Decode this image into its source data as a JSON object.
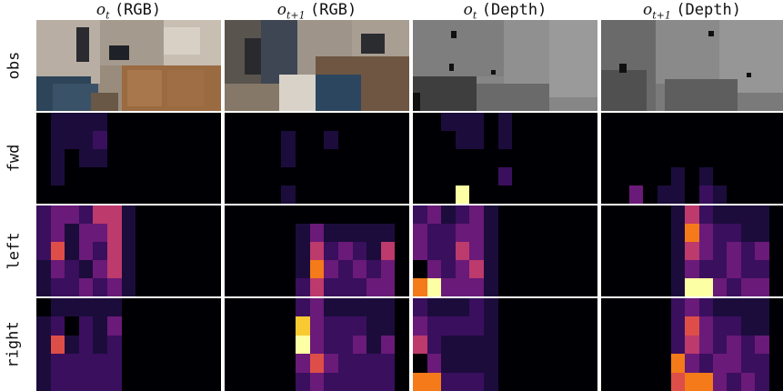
{
  "columns": [
    {
      "symbol": "o",
      "sub": "t",
      "suffix": "(RGB)"
    },
    {
      "symbol": "o",
      "sub": "t+1",
      "suffix": "(RGB)"
    },
    {
      "symbol": "o",
      "sub": "t",
      "suffix": "(Depth)"
    },
    {
      "symbol": "o",
      "sub": "t+1",
      "suffix": "(Depth)"
    }
  ],
  "rows": [
    "obs",
    "fwd",
    "left",
    "right"
  ],
  "colors": {
    "heat_low": "#000004",
    "heat_mid1": "#1c0c3c",
    "heat_mid2": "#6a1a78",
    "heat_mid3": "#bc3a6c",
    "heat_high1": "#f47a1a",
    "heat_high2": "#fcffa4"
  },
  "heatmaps": {
    "fwd": [
      [
        [
          1,
          2,
          2,
          2,
          2,
          1,
          1,
          1,
          1,
          1,
          1,
          1,
          1
        ],
        [
          1,
          2,
          2,
          2,
          3,
          1,
          1,
          1,
          1,
          1,
          1,
          1,
          1
        ],
        [
          1,
          2,
          1,
          2,
          2,
          1,
          1,
          1,
          1,
          1,
          1,
          1,
          1
        ],
        [
          1,
          2,
          1,
          1,
          1,
          1,
          1,
          1,
          1,
          1,
          1,
          1,
          1
        ],
        [
          1,
          1,
          1,
          1,
          1,
          1,
          1,
          1,
          1,
          1,
          1,
          1,
          1
        ]
      ],
      [
        [
          1,
          1,
          1,
          1,
          1,
          1,
          1,
          1,
          1,
          1,
          1,
          1,
          1
        ],
        [
          1,
          1,
          1,
          1,
          2,
          1,
          1,
          2,
          1,
          1,
          1,
          1,
          1
        ],
        [
          1,
          1,
          1,
          1,
          2,
          1,
          1,
          1,
          1,
          1,
          1,
          1,
          1
        ],
        [
          1,
          1,
          1,
          1,
          1,
          1,
          1,
          1,
          1,
          1,
          1,
          1,
          1
        ],
        [
          1,
          1,
          1,
          1,
          2,
          1,
          1,
          1,
          1,
          1,
          1,
          1,
          1
        ]
      ],
      [
        [
          1,
          1,
          2,
          2,
          2,
          1,
          2,
          1,
          1,
          1,
          1,
          1,
          1
        ],
        [
          1,
          1,
          1,
          2,
          2,
          1,
          2,
          1,
          1,
          1,
          1,
          1,
          1
        ],
        [
          1,
          1,
          1,
          1,
          1,
          1,
          1,
          1,
          1,
          1,
          1,
          1,
          1
        ],
        [
          1,
          1,
          1,
          1,
          1,
          1,
          3,
          1,
          1,
          1,
          1,
          1,
          1
        ],
        [
          1,
          1,
          1,
          9,
          1,
          1,
          1,
          1,
          1,
          1,
          1,
          1,
          1
        ]
      ],
      [
        [
          1,
          1,
          1,
          1,
          1,
          1,
          1,
          1,
          1,
          1,
          1,
          1,
          1
        ],
        [
          1,
          1,
          1,
          1,
          1,
          1,
          1,
          1,
          1,
          1,
          1,
          1,
          1
        ],
        [
          1,
          1,
          1,
          1,
          1,
          1,
          1,
          1,
          1,
          1,
          1,
          1,
          1
        ],
        [
          1,
          1,
          1,
          1,
          1,
          2,
          1,
          2,
          1,
          1,
          1,
          1,
          1
        ],
        [
          1,
          1,
          4,
          1,
          2,
          2,
          1,
          3,
          2,
          1,
          1,
          1,
          1
        ]
      ]
    ],
    "left": [
      [
        [
          3,
          4,
          4,
          3,
          5,
          5,
          2,
          1,
          1,
          1,
          1,
          1,
          1
        ],
        [
          3,
          4,
          2,
          4,
          4,
          5,
          2,
          1,
          1,
          1,
          1,
          1,
          1
        ],
        [
          3,
          6,
          2,
          4,
          3,
          5,
          2,
          1,
          1,
          1,
          1,
          1,
          1
        ],
        [
          2,
          4,
          3,
          2,
          4,
          5,
          2,
          1,
          1,
          1,
          1,
          1,
          1
        ],
        [
          2,
          3,
          3,
          4,
          3,
          4,
          2,
          1,
          1,
          1,
          1,
          1,
          1
        ]
      ],
      [
        [
          1,
          1,
          1,
          1,
          1,
          1,
          1,
          1,
          1,
          1,
          1,
          1,
          1
        ],
        [
          1,
          1,
          1,
          1,
          1,
          2,
          4,
          2,
          2,
          2,
          2,
          2,
          1
        ],
        [
          1,
          1,
          1,
          1,
          1,
          2,
          5,
          3,
          4,
          3,
          2,
          5,
          1
        ],
        [
          1,
          1,
          1,
          1,
          1,
          2,
          7,
          4,
          3,
          4,
          3,
          4,
          1
        ],
        [
          1,
          1,
          1,
          1,
          1,
          3,
          5,
          3,
          3,
          3,
          4,
          4,
          1
        ]
      ],
      [
        [
          3,
          4,
          2,
          3,
          4,
          2,
          1,
          1,
          1,
          1,
          1,
          1,
          1
        ],
        [
          4,
          3,
          3,
          4,
          4,
          2,
          1,
          1,
          1,
          1,
          1,
          1,
          1
        ],
        [
          4,
          3,
          3,
          5,
          4,
          2,
          1,
          1,
          1,
          1,
          1,
          1,
          1
        ],
        [
          1,
          4,
          3,
          4,
          5,
          2,
          1,
          1,
          1,
          1,
          1,
          1,
          1
        ],
        [
          7,
          9,
          4,
          4,
          4,
          2,
          1,
          1,
          1,
          1,
          1,
          1,
          1
        ]
      ],
      [
        [
          1,
          1,
          1,
          1,
          1,
          2,
          5,
          3,
          2,
          2,
          2,
          2,
          1
        ],
        [
          1,
          1,
          1,
          1,
          1,
          2,
          7,
          4,
          3,
          3,
          2,
          2,
          1
        ],
        [
          1,
          1,
          1,
          1,
          1,
          2,
          5,
          4,
          3,
          4,
          3,
          4,
          1
        ],
        [
          1,
          1,
          1,
          1,
          1,
          2,
          4,
          3,
          3,
          4,
          3,
          3,
          1
        ],
        [
          1,
          1,
          1,
          1,
          1,
          2,
          9,
          9,
          4,
          3,
          4,
          4,
          1
        ]
      ]
    ],
    "right": [
      [
        [
          1,
          2,
          2,
          2,
          2,
          2,
          1,
          1,
          1,
          1,
          1,
          1,
          1
        ],
        [
          2,
          3,
          1,
          3,
          2,
          4,
          1,
          1,
          1,
          1,
          1,
          1,
          1
        ],
        [
          2,
          6,
          2,
          3,
          2,
          3,
          1,
          1,
          1,
          1,
          1,
          1,
          1
        ],
        [
          2,
          3,
          3,
          3,
          3,
          3,
          1,
          1,
          1,
          1,
          1,
          1,
          1
        ],
        [
          2,
          3,
          3,
          3,
          3,
          3,
          1,
          1,
          1,
          1,
          1,
          1,
          1
        ]
      ],
      [
        [
          1,
          1,
          1,
          1,
          1,
          3,
          4,
          2,
          2,
          2,
          2,
          2,
          1
        ],
        [
          1,
          1,
          1,
          1,
          1,
          8,
          4,
          3,
          3,
          3,
          2,
          2,
          1
        ],
        [
          1,
          1,
          1,
          1,
          1,
          9,
          4,
          3,
          3,
          4,
          2,
          4,
          1
        ],
        [
          1,
          1,
          1,
          1,
          1,
          4,
          6,
          4,
          3,
          3,
          3,
          3,
          1
        ],
        [
          1,
          1,
          1,
          1,
          1,
          3,
          4,
          3,
          3,
          3,
          3,
          3,
          1
        ]
      ],
      [
        [
          3,
          2,
          2,
          2,
          3,
          2,
          1,
          1,
          1,
          1,
          1,
          1,
          1
        ],
        [
          4,
          3,
          3,
          3,
          3,
          2,
          1,
          1,
          1,
          1,
          1,
          1,
          1
        ],
        [
          5,
          3,
          2,
          2,
          2,
          2,
          1,
          1,
          1,
          1,
          1,
          1,
          1
        ],
        [
          1,
          4,
          2,
          2,
          2,
          2,
          1,
          1,
          1,
          1,
          1,
          1,
          1
        ],
        [
          7,
          7,
          3,
          3,
          3,
          2,
          1,
          1,
          1,
          1,
          1,
          1,
          1
        ]
      ],
      [
        [
          1,
          1,
          1,
          1,
          1,
          3,
          4,
          3,
          2,
          2,
          2,
          2,
          1
        ],
        [
          1,
          1,
          1,
          1,
          1,
          3,
          6,
          4,
          3,
          3,
          2,
          2,
          1
        ],
        [
          1,
          1,
          1,
          1,
          1,
          3,
          5,
          4,
          3,
          4,
          3,
          4,
          1
        ],
        [
          1,
          1,
          1,
          1,
          1,
          7,
          4,
          3,
          4,
          4,
          3,
          3,
          1
        ],
        [
          1,
          1,
          1,
          1,
          1,
          6,
          7,
          7,
          4,
          3,
          4,
          3,
          1
        ]
      ]
    ]
  }
}
